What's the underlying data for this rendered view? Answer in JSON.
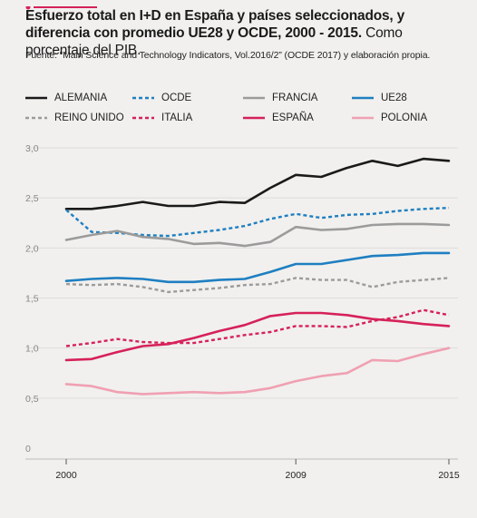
{
  "header": {
    "title_bold": "Esfuerzo total en I+D en España y países seleccionados, y diferencia con promedio UE28 y OCDE, 2000 - 2015.",
    "title_regular": " Como porcentaje del PIB.",
    "source": "Fuente: “Main Science and Technology Indicators, Vol.2016/2” (OCDE 2017) y elaboración propia."
  },
  "chart_data": {
    "type": "line",
    "title": "Esfuerzo total en I+D en España y países seleccionados, y diferencia con promedio UE28 y OCDE, 2000 - 2015. Como porcentaje del PIB.",
    "x": [
      2000,
      2001,
      2002,
      2003,
      2004,
      2005,
      2006,
      2007,
      2008,
      2009,
      2010,
      2011,
      2012,
      2013,
      2014,
      2015
    ],
    "x_tick_labels": [
      "2000",
      "2009",
      "2015"
    ],
    "y_ticks": [
      "0",
      "0,5",
      "1,0",
      "1,5",
      "2,0",
      "2,5",
      "3,0"
    ],
    "ylim": [
      0,
      3.0
    ],
    "grid": true,
    "legend_position": "top",
    "series": [
      {
        "name": "ALEMANIA",
        "color": "#1a1a1a",
        "dash": "solid",
        "values": [
          2.39,
          2.39,
          2.42,
          2.46,
          2.42,
          2.42,
          2.46,
          2.45,
          2.6,
          2.73,
          2.71,
          2.8,
          2.87,
          2.82,
          2.89,
          2.87
        ]
      },
      {
        "name": "OCDE",
        "color": "#1f7fc1",
        "dash": "dotted",
        "values": [
          2.38,
          2.16,
          2.15,
          2.13,
          2.12,
          2.15,
          2.18,
          2.22,
          2.29,
          2.34,
          2.3,
          2.33,
          2.34,
          2.37,
          2.39,
          2.4
        ]
      },
      {
        "name": "FRANCIA",
        "color": "#9b9b9b",
        "dash": "solid",
        "values": [
          2.08,
          2.13,
          2.17,
          2.11,
          2.09,
          2.04,
          2.05,
          2.02,
          2.06,
          2.21,
          2.18,
          2.19,
          2.23,
          2.24,
          2.24,
          2.23
        ]
      },
      {
        "name": "UE28",
        "color": "#1f7fc1",
        "dash": "solid",
        "values": [
          1.67,
          1.69,
          1.7,
          1.69,
          1.66,
          1.66,
          1.68,
          1.69,
          1.76,
          1.84,
          1.84,
          1.88,
          1.92,
          1.93,
          1.95,
          1.95
        ]
      },
      {
        "name": "REINO UNIDO",
        "color": "#9b9b9b",
        "dash": "dotted",
        "values": [
          1.64,
          1.63,
          1.64,
          1.61,
          1.56,
          1.58,
          1.6,
          1.63,
          1.64,
          1.7,
          1.68,
          1.68,
          1.61,
          1.66,
          1.68,
          1.7
        ]
      },
      {
        "name": "ITALIA",
        "color": "#d6215a",
        "dash": "dotted",
        "values": [
          1.02,
          1.05,
          1.09,
          1.06,
          1.05,
          1.05,
          1.09,
          1.13,
          1.16,
          1.22,
          1.22,
          1.21,
          1.27,
          1.31,
          1.38,
          1.33
        ]
      },
      {
        "name": "ESPAÑA",
        "color": "#d6215a",
        "dash": "solid",
        "values": [
          0.88,
          0.89,
          0.96,
          1.02,
          1.04,
          1.1,
          1.17,
          1.23,
          1.32,
          1.35,
          1.35,
          1.33,
          1.29,
          1.27,
          1.24,
          1.22
        ]
      },
      {
        "name": "POLONIA",
        "color": "#f0a0b2",
        "dash": "solid",
        "values": [
          0.64,
          0.62,
          0.56,
          0.54,
          0.55,
          0.56,
          0.55,
          0.56,
          0.6,
          0.67,
          0.72,
          0.75,
          0.88,
          0.87,
          0.94,
          1.0
        ]
      }
    ]
  }
}
